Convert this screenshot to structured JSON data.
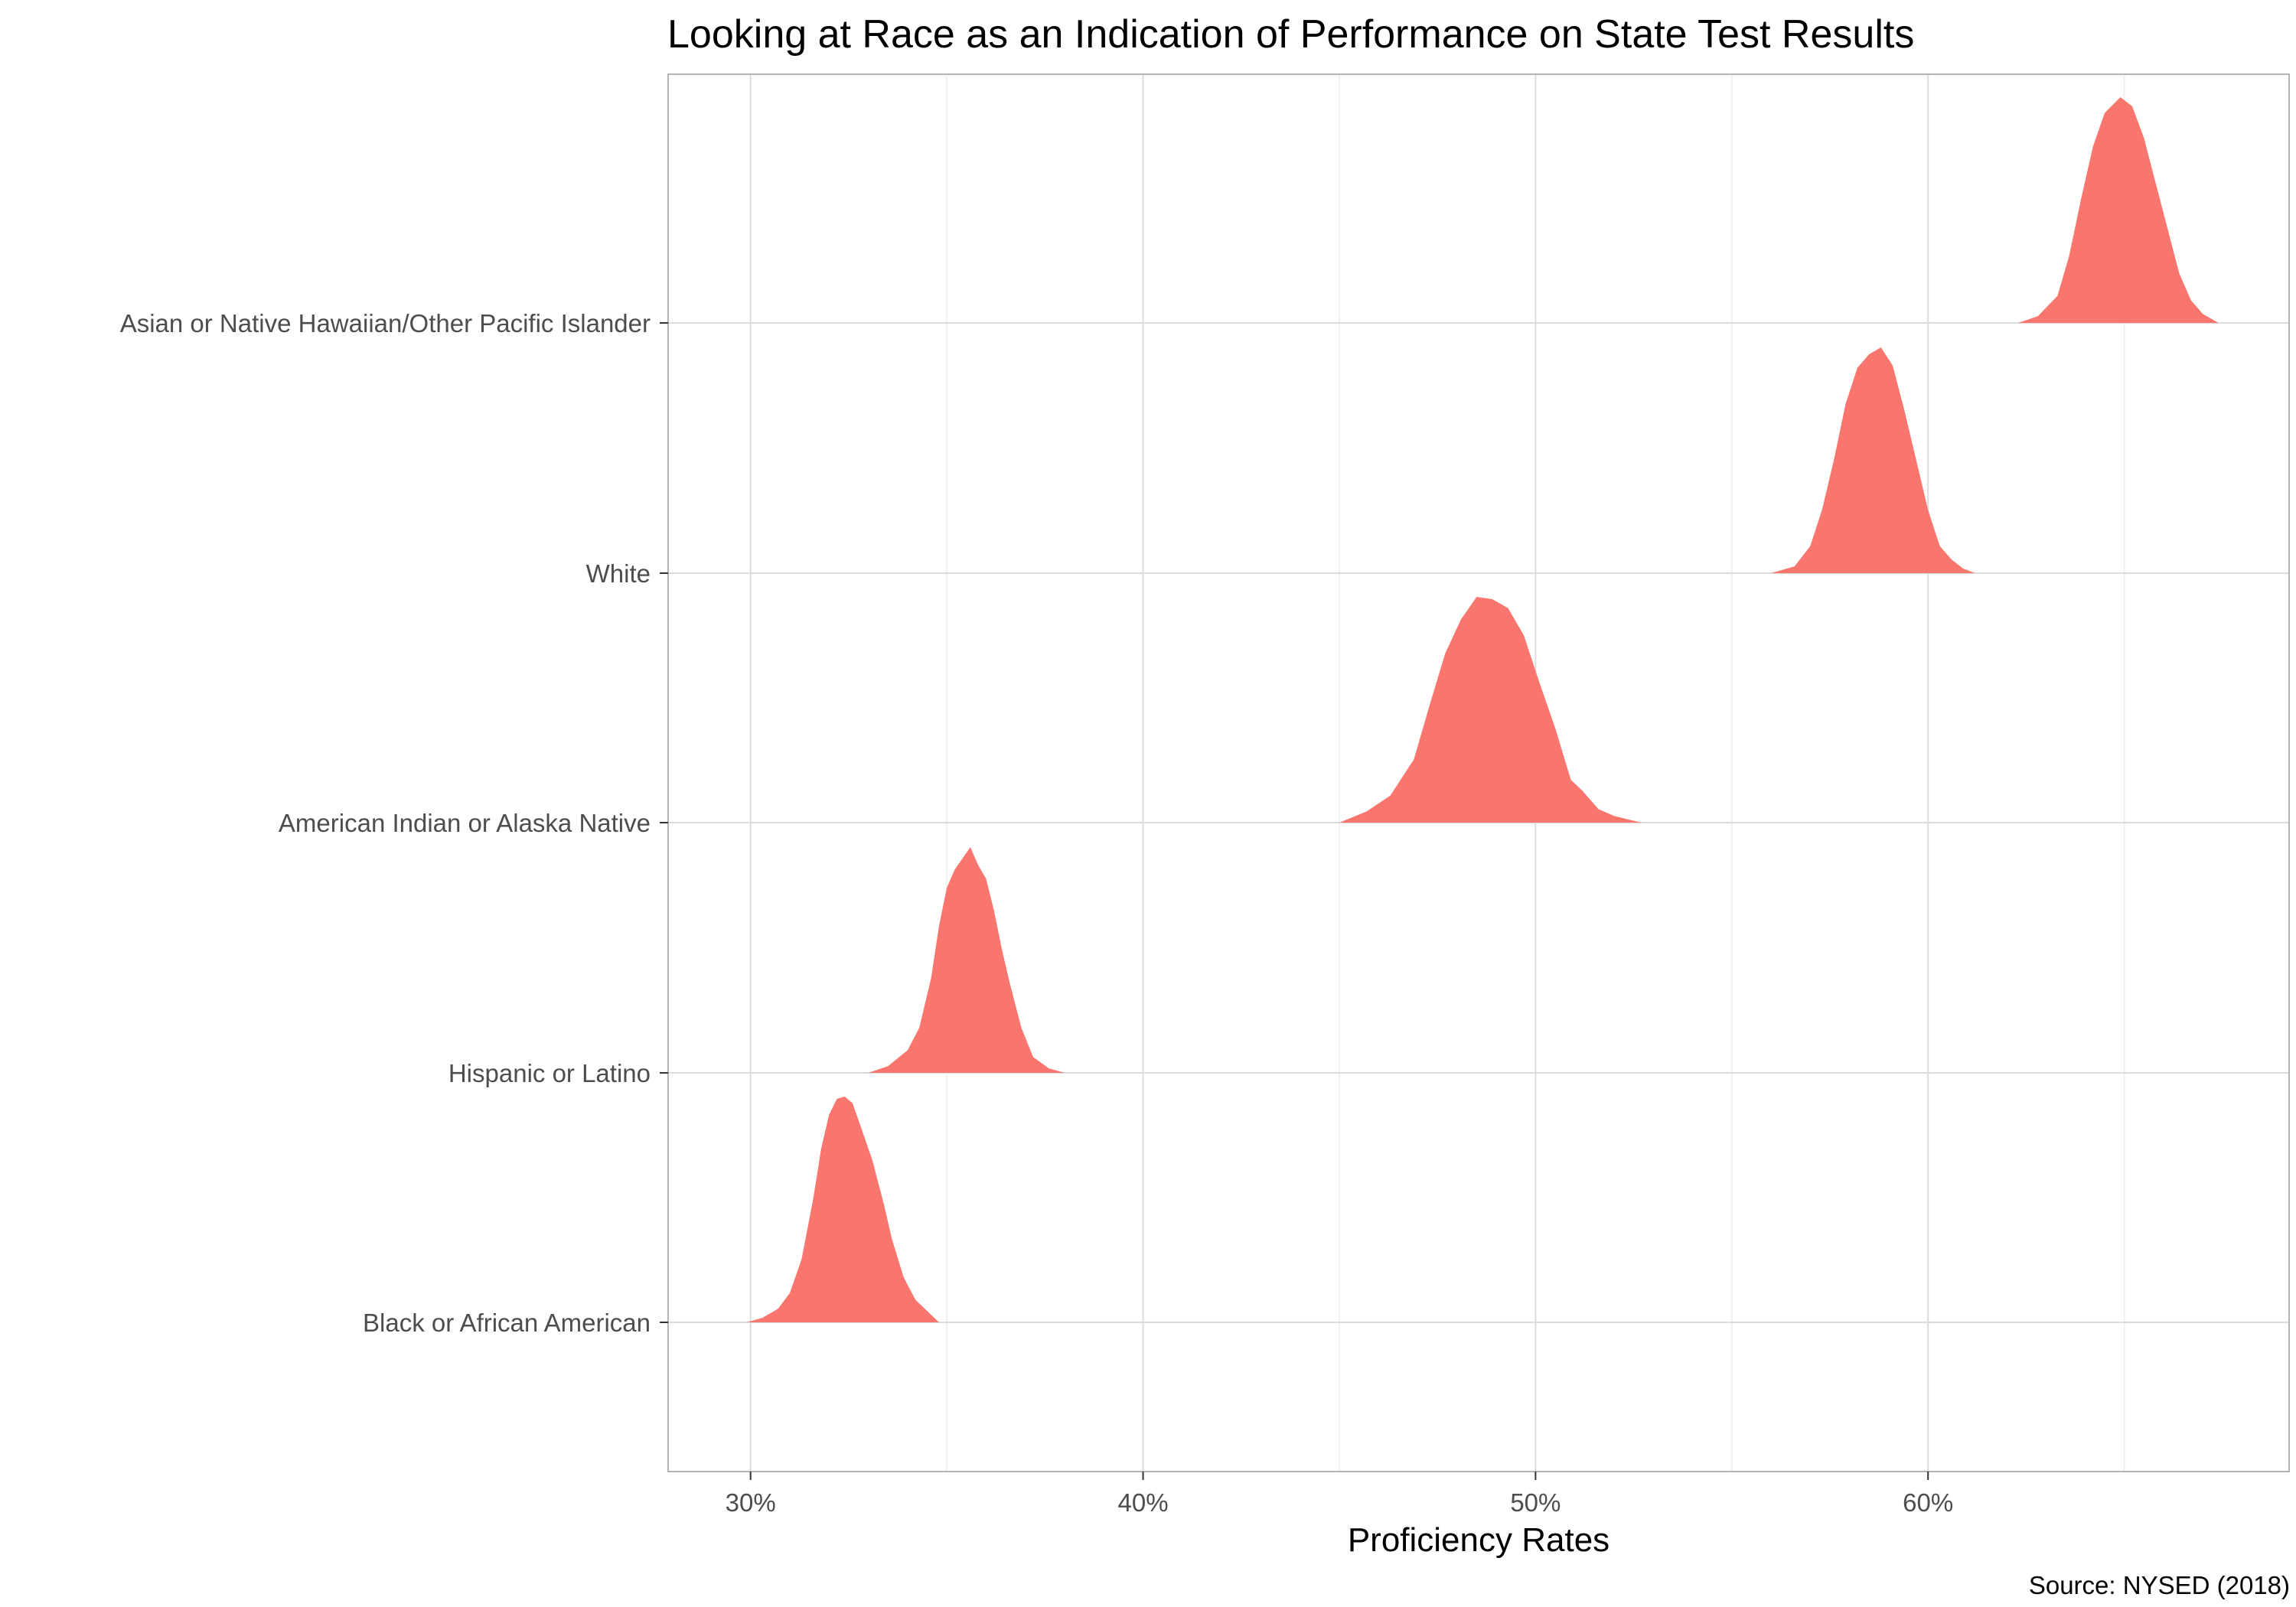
{
  "chart_data": {
    "type": "ridgeline",
    "title": "Looking at Race as an Indication of Performance on State Test Results",
    "xlabel": "Proficiency Rates",
    "caption": "Source: NYSED (2018)",
    "xlim": [
      27.9,
      69.2
    ],
    "x_ticks": [
      30,
      40,
      50,
      60
    ],
    "x_tick_labels": [
      "30%",
      "40%",
      "50%",
      "60%"
    ],
    "fill_color": "#F8766D",
    "grid": true,
    "categories": [
      "Black or African American",
      "Hispanic or Latino",
      "American Indian or Alaska Native",
      "White",
      "Asian or Native Hawaiian/Other Pacific Islander"
    ],
    "series": [
      {
        "name": "Black or African American",
        "profile": [
          [
            29.9,
            0.0
          ],
          [
            30.3,
            0.02
          ],
          [
            30.7,
            0.06
          ],
          [
            31.0,
            0.13
          ],
          [
            31.3,
            0.28
          ],
          [
            31.6,
            0.55
          ],
          [
            31.8,
            0.77
          ],
          [
            32.0,
            0.92
          ],
          [
            32.2,
            0.99
          ],
          [
            32.4,
            1.0
          ],
          [
            32.6,
            0.97
          ],
          [
            32.8,
            0.87
          ],
          [
            33.1,
            0.72
          ],
          [
            33.4,
            0.52
          ],
          [
            33.6,
            0.37
          ],
          [
            33.9,
            0.2
          ],
          [
            34.2,
            0.1
          ],
          [
            34.5,
            0.05
          ],
          [
            34.8,
            0.0
          ]
        ]
      },
      {
        "name": "Hispanic or Latino",
        "profile": [
          [
            33.0,
            0.0
          ],
          [
            33.5,
            0.03
          ],
          [
            34.0,
            0.1
          ],
          [
            34.3,
            0.2
          ],
          [
            34.6,
            0.42
          ],
          [
            34.8,
            0.65
          ],
          [
            35.0,
            0.82
          ],
          [
            35.2,
            0.9
          ],
          [
            35.4,
            0.95
          ],
          [
            35.6,
            1.0
          ],
          [
            35.8,
            0.92
          ],
          [
            36.0,
            0.86
          ],
          [
            36.2,
            0.72
          ],
          [
            36.4,
            0.55
          ],
          [
            36.6,
            0.4
          ],
          [
            36.9,
            0.2
          ],
          [
            37.2,
            0.07
          ],
          [
            37.6,
            0.02
          ],
          [
            38.0,
            0.0
          ]
        ]
      },
      {
        "name": "American Indian or Alaska Native",
        "profile": [
          [
            45.0,
            0.0
          ],
          [
            45.7,
            0.05
          ],
          [
            46.3,
            0.12
          ],
          [
            46.9,
            0.28
          ],
          [
            47.3,
            0.52
          ],
          [
            47.7,
            0.75
          ],
          [
            48.1,
            0.9
          ],
          [
            48.5,
            1.0
          ],
          [
            48.9,
            0.99
          ],
          [
            49.3,
            0.95
          ],
          [
            49.7,
            0.83
          ],
          [
            50.1,
            0.62
          ],
          [
            50.5,
            0.42
          ],
          [
            50.9,
            0.19
          ],
          [
            51.2,
            0.14
          ],
          [
            51.6,
            0.06
          ],
          [
            52.0,
            0.03
          ],
          [
            52.7,
            0.0
          ]
        ]
      },
      {
        "name": "White",
        "profile": [
          [
            56.0,
            0.0
          ],
          [
            56.6,
            0.03
          ],
          [
            57.0,
            0.12
          ],
          [
            57.3,
            0.28
          ],
          [
            57.6,
            0.5
          ],
          [
            57.9,
            0.75
          ],
          [
            58.2,
            0.91
          ],
          [
            58.5,
            0.97
          ],
          [
            58.8,
            1.0
          ],
          [
            59.1,
            0.92
          ],
          [
            59.4,
            0.72
          ],
          [
            59.7,
            0.5
          ],
          [
            60.0,
            0.28
          ],
          [
            60.3,
            0.12
          ],
          [
            60.6,
            0.06
          ],
          [
            60.9,
            0.02
          ],
          [
            61.2,
            0.0
          ]
        ]
      },
      {
        "name": "Asian or Native Hawaiian/Other Pacific Islander",
        "profile": [
          [
            62.3,
            0.0
          ],
          [
            62.8,
            0.03
          ],
          [
            63.3,
            0.12
          ],
          [
            63.6,
            0.3
          ],
          [
            63.9,
            0.55
          ],
          [
            64.2,
            0.78
          ],
          [
            64.5,
            0.93
          ],
          [
            64.9,
            1.0
          ],
          [
            65.2,
            0.96
          ],
          [
            65.5,
            0.82
          ],
          [
            65.8,
            0.62
          ],
          [
            66.1,
            0.42
          ],
          [
            66.4,
            0.22
          ],
          [
            66.7,
            0.1
          ],
          [
            67.0,
            0.04
          ],
          [
            67.4,
            0.0
          ]
        ]
      }
    ]
  }
}
